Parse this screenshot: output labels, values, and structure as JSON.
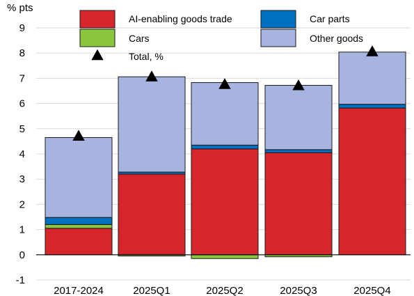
{
  "chart_data": {
    "type": "bar",
    "stacked": true,
    "y_unit_label": "% pts",
    "categories": [
      "2017-2024",
      "2025Q1",
      "2025Q2",
      "2025Q3",
      "2025Q4"
    ],
    "series": [
      {
        "name": "AI-enabling goods trade",
        "color": "#d7262b",
        "values": [
          1.05,
          3.2,
          4.2,
          4.05,
          5.82
        ]
      },
      {
        "name": "Cars",
        "color": "#8cc63f",
        "values": [
          0.15,
          -0.05,
          -0.15,
          -0.08,
          0.0
        ]
      },
      {
        "name": "Car parts",
        "color": "#0070c0",
        "values": [
          0.28,
          0.08,
          0.15,
          0.12,
          0.15
        ]
      },
      {
        "name": "Other goods",
        "color": "#a8b4e0",
        "values": [
          3.17,
          3.78,
          2.48,
          2.55,
          2.07
        ]
      }
    ],
    "total": {
      "name": "Total, %",
      "marker": "triangle",
      "values": [
        4.7,
        7.05,
        6.75,
        6.7,
        8.05
      ]
    },
    "ylim": [
      -1,
      9
    ],
    "yticks": [
      -1,
      0,
      1,
      2,
      3,
      4,
      5,
      6,
      7,
      8,
      9
    ],
    "grid": "horizontal",
    "legend_position": "top"
  }
}
